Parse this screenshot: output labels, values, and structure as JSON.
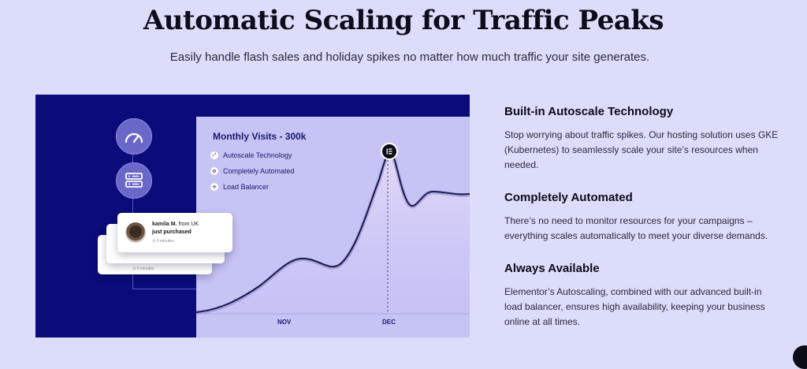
{
  "header": {
    "title": "Automatic Scaling for Traffic Peaks",
    "subtitle": "Easily handle flash sales and holiday spikes no matter how much traffic your site generates."
  },
  "illustration": {
    "chart_title": "Monthly Visits - 300k",
    "features": [
      {
        "icon": "expand-arrows-icon",
        "label": "Autoscale Technology"
      },
      {
        "icon": "gear-icon",
        "label": "Completely Automated"
      },
      {
        "icon": "network-icon",
        "label": "Load Balancer"
      }
    ],
    "x_labels": [
      "NOV",
      "DEC"
    ],
    "peak_badge_icon": "elementor-logo-icon",
    "side_icons": [
      "gauge-icon",
      "server-icon"
    ],
    "notification": {
      "name": "kamila M.",
      "from": "from UK",
      "action": "just purchased",
      "time": "3 minutes"
    },
    "notification_back_time": "5 minutes"
  },
  "features": [
    {
      "heading": "Built-in Autoscale Technology",
      "body": "Stop worrying about traffic spikes. Our hosting solution uses GKE (Kubernetes) to seamlessly scale your site’s resources when needed."
    },
    {
      "heading": "Completely Automated",
      "body": "There’s no need to monitor resources for your campaigns – everything scales automatically to meet your diverse demands."
    },
    {
      "heading": "Always Available",
      "body": "Elementor’s Autoscaling, combined with our advanced built-in load balancer, ensures high availability, keeping your business online at all times."
    }
  ],
  "colors": {
    "page_bg": "#dcdcfb",
    "panel_bg": "#0b0b7a",
    "chart_bg": "#c6c3f5",
    "line": "#1a1a4e"
  }
}
